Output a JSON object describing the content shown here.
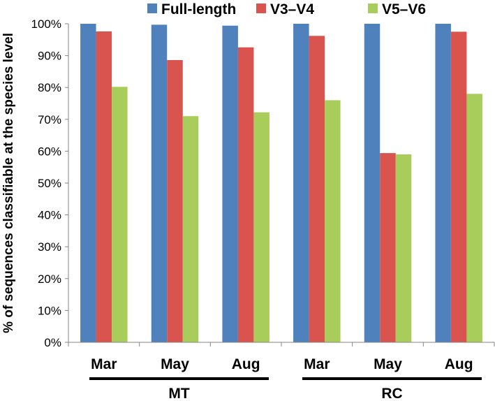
{
  "chart_data": {
    "type": "bar",
    "title": "",
    "xlabel": "",
    "ylabel": "% of sequences classifiable at the species level",
    "ylim": [
      0,
      100
    ],
    "yticks": [
      "0%",
      "10%",
      "20%",
      "30%",
      "40%",
      "50%",
      "60%",
      "70%",
      "80%",
      "90%",
      "100%"
    ],
    "grid": false,
    "legend_position": "top",
    "categories": [
      "Mar",
      "May",
      "Aug",
      "Mar",
      "May",
      "Aug"
    ],
    "groups": [
      {
        "label": "MT",
        "categories": [
          0,
          1,
          2
        ]
      },
      {
        "label": "RC",
        "categories": [
          3,
          4,
          5
        ]
      }
    ],
    "series": [
      {
        "name": "Full-length",
        "color": "#4f81bd",
        "values": [
          100,
          99.7,
          99.4,
          100,
          100,
          100
        ]
      },
      {
        "name": "V3–V4",
        "color": "#d9534f",
        "values": [
          97.6,
          88.6,
          92.6,
          96.2,
          59.4,
          97.5
        ]
      },
      {
        "name": "V5–V6",
        "color": "#a9cd5b",
        "values": [
          80.2,
          71.0,
          72.2,
          76.0,
          59.0,
          78.0
        ]
      }
    ]
  }
}
